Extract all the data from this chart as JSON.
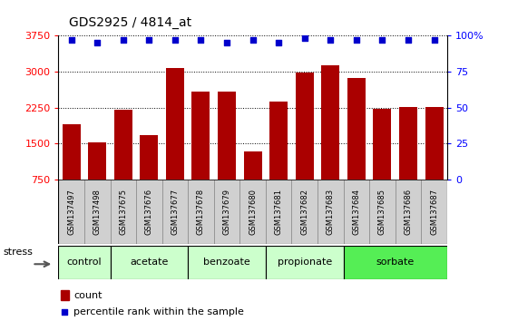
{
  "title": "GDS2925 / 4814_at",
  "samples": [
    "GSM137497",
    "GSM137498",
    "GSM137675",
    "GSM137676",
    "GSM137677",
    "GSM137678",
    "GSM137679",
    "GSM137680",
    "GSM137681",
    "GSM137682",
    "GSM137683",
    "GSM137684",
    "GSM137685",
    "GSM137686",
    "GSM137687"
  ],
  "counts": [
    1900,
    1530,
    2210,
    1680,
    3070,
    2580,
    2590,
    1340,
    2380,
    2980,
    3130,
    2870,
    2230,
    2260,
    2260
  ],
  "percentiles": [
    97,
    95,
    97,
    97,
    97,
    97,
    95,
    97,
    95,
    98,
    97,
    97,
    97,
    97,
    97
  ],
  "groups": [
    {
      "label": "control",
      "start": 0,
      "end": 2,
      "color": "#ccffcc"
    },
    {
      "label": "acetate",
      "start": 2,
      "end": 5,
      "color": "#ccffcc"
    },
    {
      "label": "benzoate",
      "start": 5,
      "end": 8,
      "color": "#ccffcc"
    },
    {
      "label": "propionate",
      "start": 8,
      "end": 11,
      "color": "#ccffcc"
    },
    {
      "label": "sorbate",
      "start": 11,
      "end": 15,
      "color": "#55ee55"
    }
  ],
  "bar_color": "#aa0000",
  "dot_color": "#0000cc",
  "ylim_left": [
    750,
    3750
  ],
  "ylim_right": [
    0,
    100
  ],
  "yticks_left": [
    750,
    1500,
    2250,
    3000,
    3750
  ],
  "yticks_right": [
    0,
    25,
    50,
    75,
    100
  ],
  "bg_color": "#ffffff",
  "stress_label": "stress",
  "legend_count": "count",
  "legend_pct": "percentile rank within the sample",
  "label_bg": "#d0d0d0",
  "label_border": "#aaaaaa"
}
